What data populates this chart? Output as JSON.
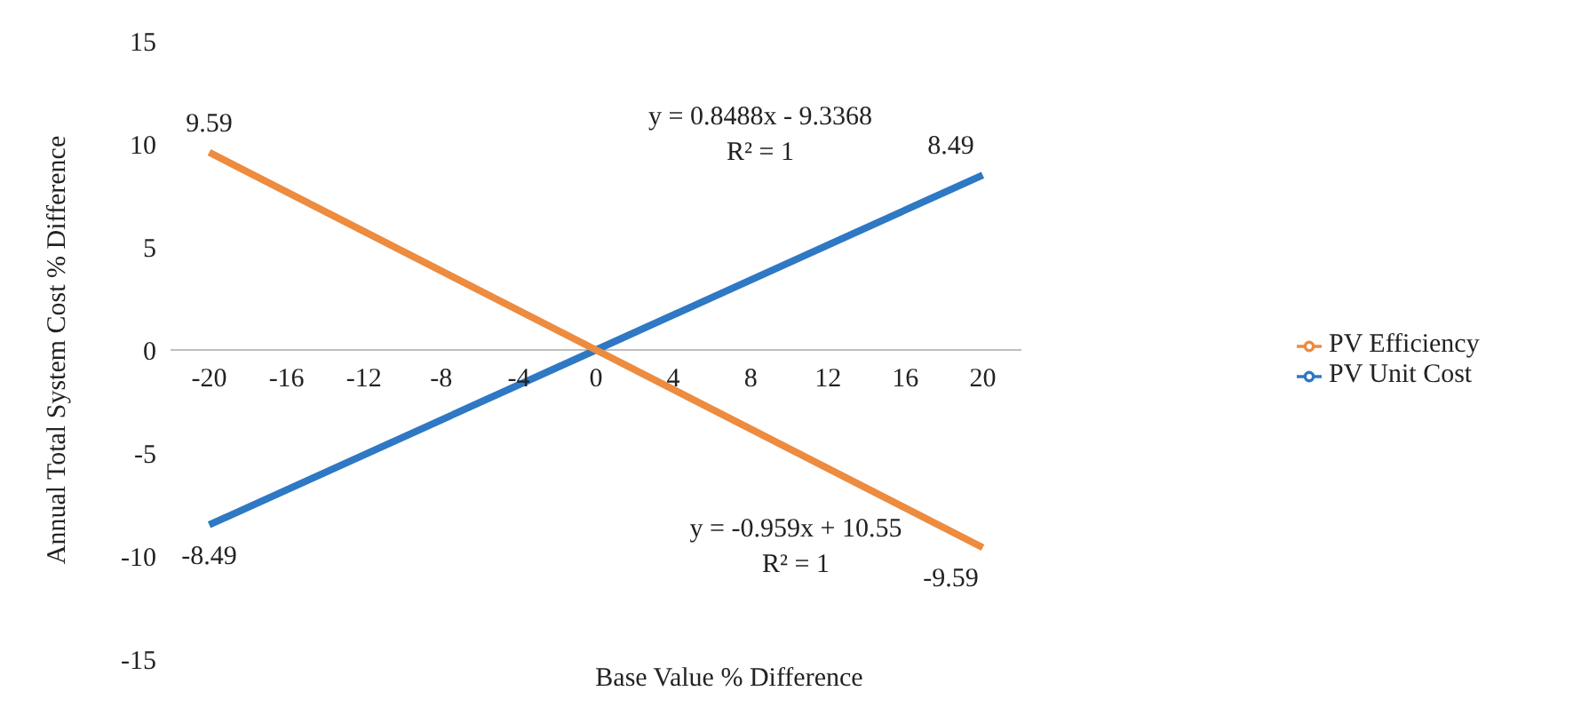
{
  "chart_data": {
    "type": "line",
    "xlabel": "Base Value % Difference",
    "ylabel": "Annual Total System Cost % Difference",
    "x": [
      -20,
      0,
      20
    ],
    "series": [
      {
        "name": "PV Unit Cost",
        "color": "#2e78c4",
        "values": [
          -8.49,
          0,
          8.49
        ],
        "value_labels": [
          "-8.49",
          null,
          "8.49"
        ]
      },
      {
        "name": "PV Efficiency",
        "color": "#ed8b3f",
        "values": [
          9.59,
          0,
          -9.59
        ],
        "value_labels": [
          "9.59",
          null,
          "-9.59"
        ]
      }
    ],
    "xlim": [
      -22,
      22
    ],
    "xticks": [
      -20,
      -16,
      -12,
      -8,
      -4,
      0,
      4,
      8,
      12,
      16,
      20
    ],
    "ylim": [
      -15,
      15
    ],
    "yticks": [
      -15,
      -10,
      -5,
      0,
      5,
      10,
      15
    ],
    "grid": false,
    "legend": "right",
    "marker": "none",
    "line_style": "solid",
    "annotations": [
      "y = 0.8488x - 9.3368\nR² = 1",
      "y = -0.959x + 10.55\nR² = 1"
    ]
  }
}
